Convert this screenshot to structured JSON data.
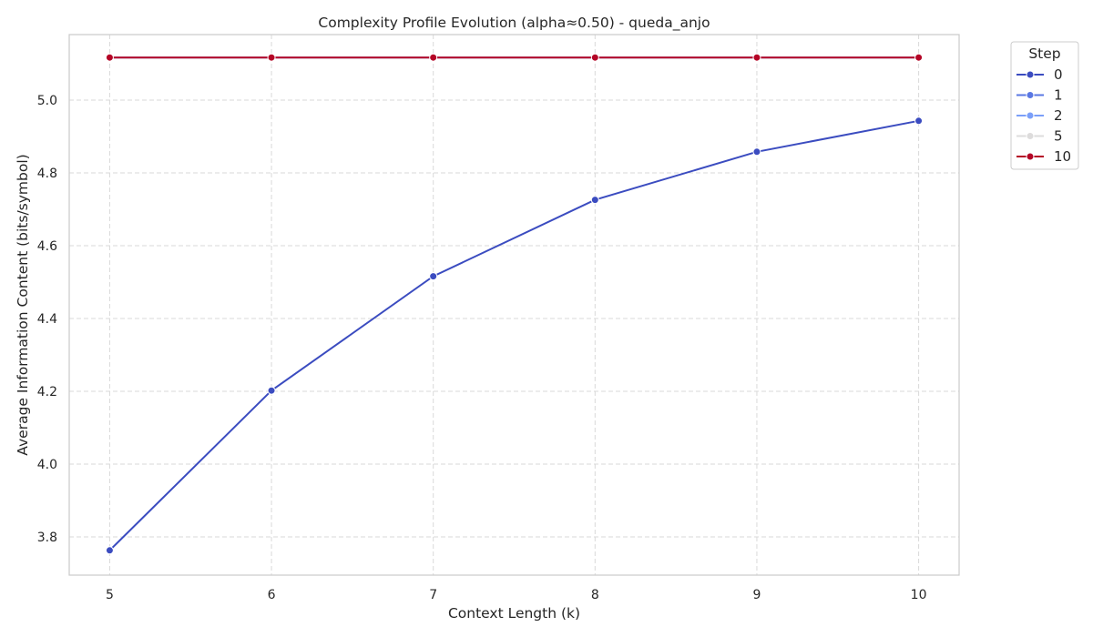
{
  "chart_data": {
    "type": "line",
    "title": "Complexity Profile Evolution (alpha≈0.50) - queda_anjo",
    "xlabel": "Context Length (k)",
    "ylabel": "Average Information Content (bits/symbol)",
    "x": [
      5,
      6,
      7,
      8,
      9,
      10
    ],
    "x_ticks": [
      "5",
      "6",
      "7",
      "8",
      "9",
      "10"
    ],
    "y_ticks": [
      "3.8",
      "4.0",
      "4.2",
      "4.4",
      "4.6",
      "4.8",
      "5.0"
    ],
    "xlim": [
      4.75,
      10.25
    ],
    "ylim": [
      3.695,
      5.18
    ],
    "grid": true,
    "legend_title": "Step",
    "legend_position": "outside-top-right",
    "series": [
      {
        "name": "0",
        "color": "#3b4cc0",
        "values": [
          3.763,
          4.202,
          4.516,
          4.726,
          4.858,
          4.943
        ]
      },
      {
        "name": "1",
        "color": "#5977e3",
        "values": [
          5.117,
          5.117,
          5.117,
          5.117,
          5.117,
          5.117
        ]
      },
      {
        "name": "2",
        "color": "#7b9ff9",
        "values": [
          5.117,
          5.117,
          5.117,
          5.117,
          5.117,
          5.117
        ]
      },
      {
        "name": "5",
        "color": "#dddcdc",
        "values": [
          5.117,
          5.117,
          5.117,
          5.117,
          5.117,
          5.117
        ]
      },
      {
        "name": "10",
        "color": "#b40426",
        "values": [
          5.117,
          5.117,
          5.117,
          5.117,
          5.117,
          5.117
        ]
      }
    ]
  }
}
